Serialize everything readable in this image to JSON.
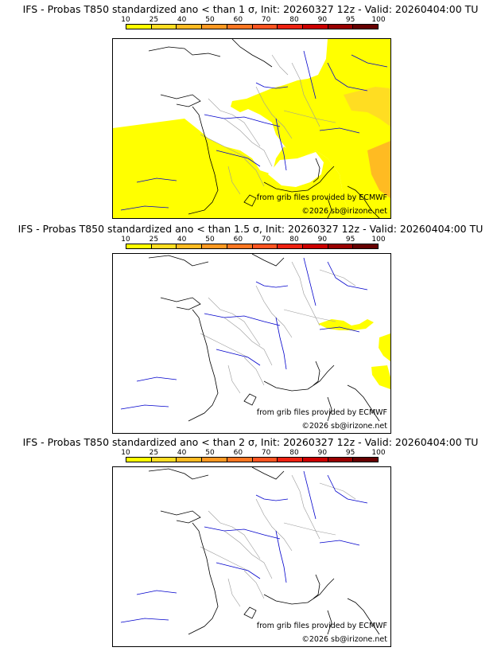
{
  "panels": [
    {
      "title": "IFS - Probas T850  standardized ano < than 1 σ, Init: 20260327 12z - Valid: 20260404:00 TU",
      "credit_source": "from grib files provided by ECMWF",
      "credit_copyright": "©2026 sb@irizone.net"
    },
    {
      "title": "IFS - Probas T850  standardized ano < than 1.5 σ, Init: 20260327 12z - Valid: 20260404:00 TU",
      "credit_source": "from grib files provided by ECMWF",
      "credit_copyright": "©2026 sb@irizone.net"
    },
    {
      "title": "IFS - Probas T850  standardized ano < than 2 σ, Init: 20260327 12z - Valid: 20260404:00 TU",
      "credit_source": "from grib files provided by ECMWF",
      "credit_copyright": "©2026 sb@irizone.net"
    }
  ],
  "scale": {
    "labels": [
      "10",
      "25",
      "40",
      "50",
      "60",
      "70",
      "80",
      "90",
      "95",
      "100"
    ],
    "colors": [
      "#ffff00",
      "#ffdd22",
      "#ffbb22",
      "#ff9922",
      "#ff7722",
      "#ff5522",
      "#ee2211",
      "#cc0000",
      "#990000",
      "#660000"
    ]
  },
  "colors": {
    "coast": "#000000",
    "borders": "#9a9a9a",
    "rivers": "#0000cc",
    "prob_low": "#ffff00",
    "prob_mid": "#ffdd22",
    "prob_high": "#ffbb22"
  }
}
